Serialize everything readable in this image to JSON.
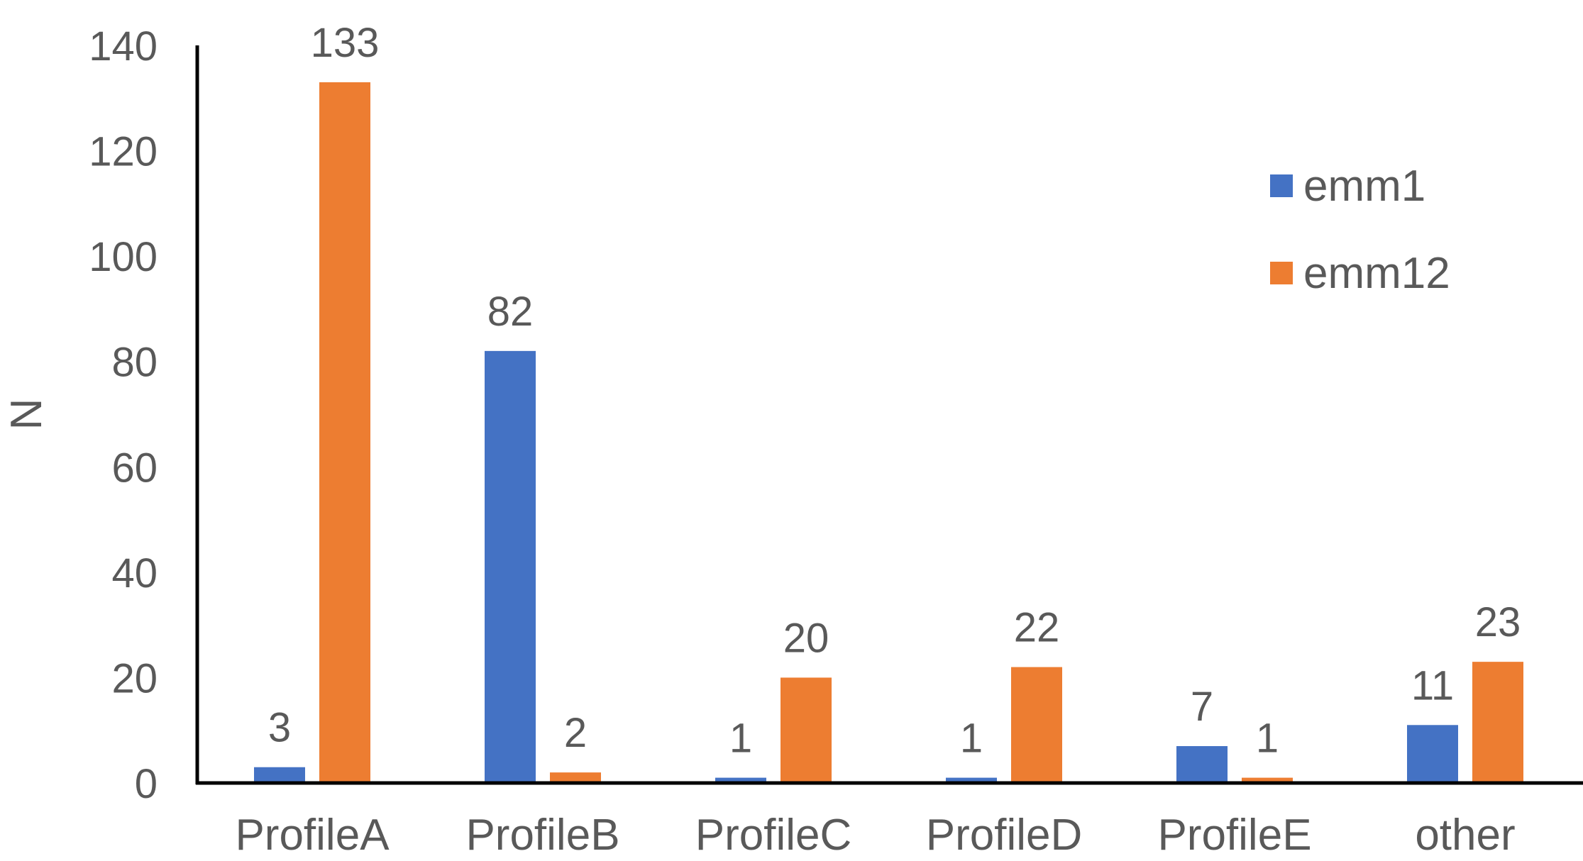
{
  "chart_data": {
    "type": "bar",
    "title": "",
    "xlabel": "",
    "ylabel": "N",
    "ylim": [
      0,
      140
    ],
    "yticks": [
      0,
      20,
      40,
      60,
      80,
      100,
      120,
      140
    ],
    "grid": false,
    "legend_position": "top-right",
    "categories": [
      "ProfileA",
      "ProfileB",
      "ProfileC",
      "ProfileD",
      "ProfileE",
      "other"
    ],
    "series": [
      {
        "name": "emm1",
        "color": "#4472C4",
        "values": [
          3,
          82,
          1,
          1,
          7,
          11
        ]
      },
      {
        "name": "emm12",
        "color": "#ED7D31",
        "values": [
          133,
          2,
          20,
          22,
          1,
          23
        ]
      }
    ],
    "text_color": "#595959",
    "axis_color": "#000000"
  }
}
